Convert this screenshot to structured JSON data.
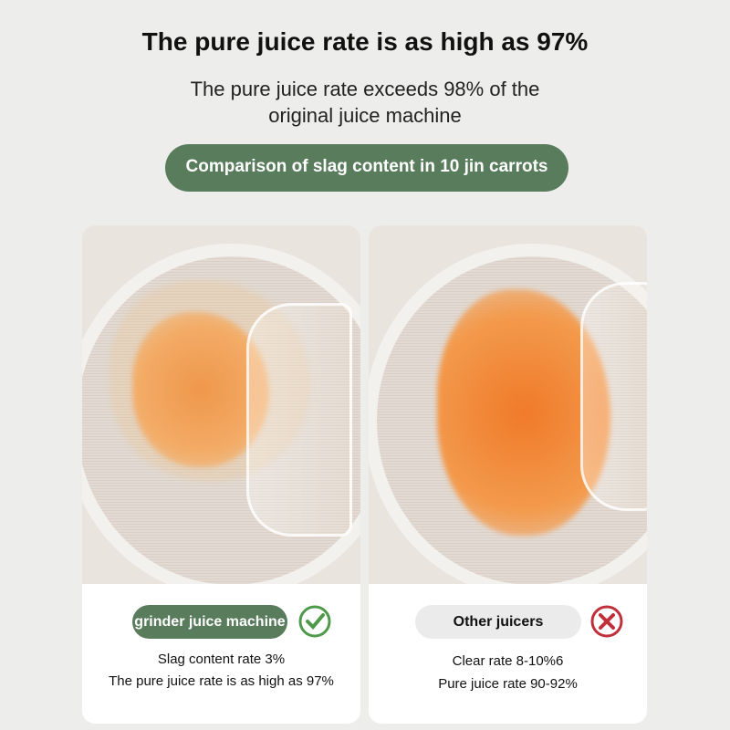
{
  "header": {
    "title": "The pure juice rate is as high as 97%",
    "subtitle_line1": "The pure juice rate exceeds 98% of the",
    "subtitle_line2": "original juice machine",
    "comparison_label": "Comparison of slag content in 10 jin carrots"
  },
  "left_card": {
    "label": "grinder juice machine",
    "icon": "check-circle-icon",
    "line1": "Slag content rate 3%",
    "line2": "The pure juice rate is as high as 97%"
  },
  "right_card": {
    "label": "Other juicers",
    "icon": "x-circle-icon",
    "line1": "Clear rate 8-10%6",
    "line2": "Pure juice rate 90-92%"
  },
  "colors": {
    "accent_green": "#587c5c",
    "check_green": "#4f9a4a",
    "cross_red": "#c0303a",
    "background": "#ededeb"
  }
}
